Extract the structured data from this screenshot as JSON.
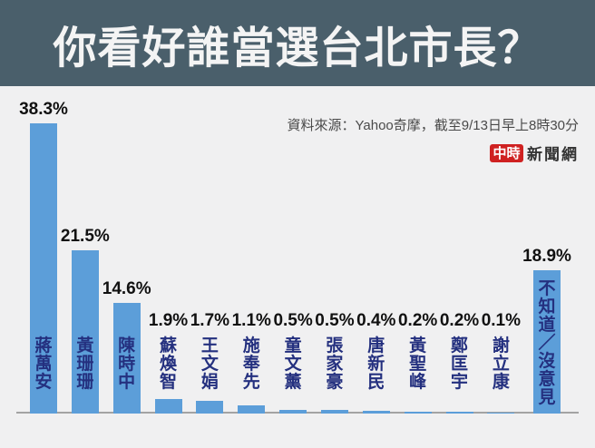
{
  "header": {
    "title": "你看好誰當選台北市長？",
    "bg_color": "#4a5f6b",
    "text_color": "#f4f4f4"
  },
  "source_note": "資料來源：Yahoo奇摩，截至9/13日早上8時30分",
  "logo": {
    "badge": "中時",
    "suffix": "新聞網",
    "badge_color": "#cf2121"
  },
  "chart_data": {
    "type": "bar",
    "title": "你看好誰當選台北市長？",
    "categories": [
      "蔣萬安",
      "黃珊珊",
      "陳時中",
      "蘇煥智",
      "王文娟",
      "施奉先",
      "童文薰",
      "張家豪",
      "唐新民",
      "黃聖峰",
      "鄭匡宇",
      "謝立康",
      "不知道／沒意見"
    ],
    "values": [
      38.3,
      21.5,
      14.6,
      1.9,
      1.7,
      1.1,
      0.5,
      0.5,
      0.4,
      0.2,
      0.2,
      0.1,
      18.9
    ],
    "labels": [
      "38.3%",
      "21.5%",
      "14.6%",
      "1.9%",
      "1.7%",
      "1.1%",
      "0.5%",
      "0.5%",
      "0.4%",
      "0.2%",
      "0.2%",
      "0.1%",
      "18.9%"
    ],
    "xlabel": "",
    "ylabel": "",
    "ylim": [
      0,
      40
    ],
    "grid": false,
    "legend": false,
    "bar_color": "#5c9ed9",
    "category_label_color": "#24307f",
    "value_label_color": "#111111",
    "axis_line_color": "#a3a3a3",
    "background_color": "#f0f0f1"
  }
}
